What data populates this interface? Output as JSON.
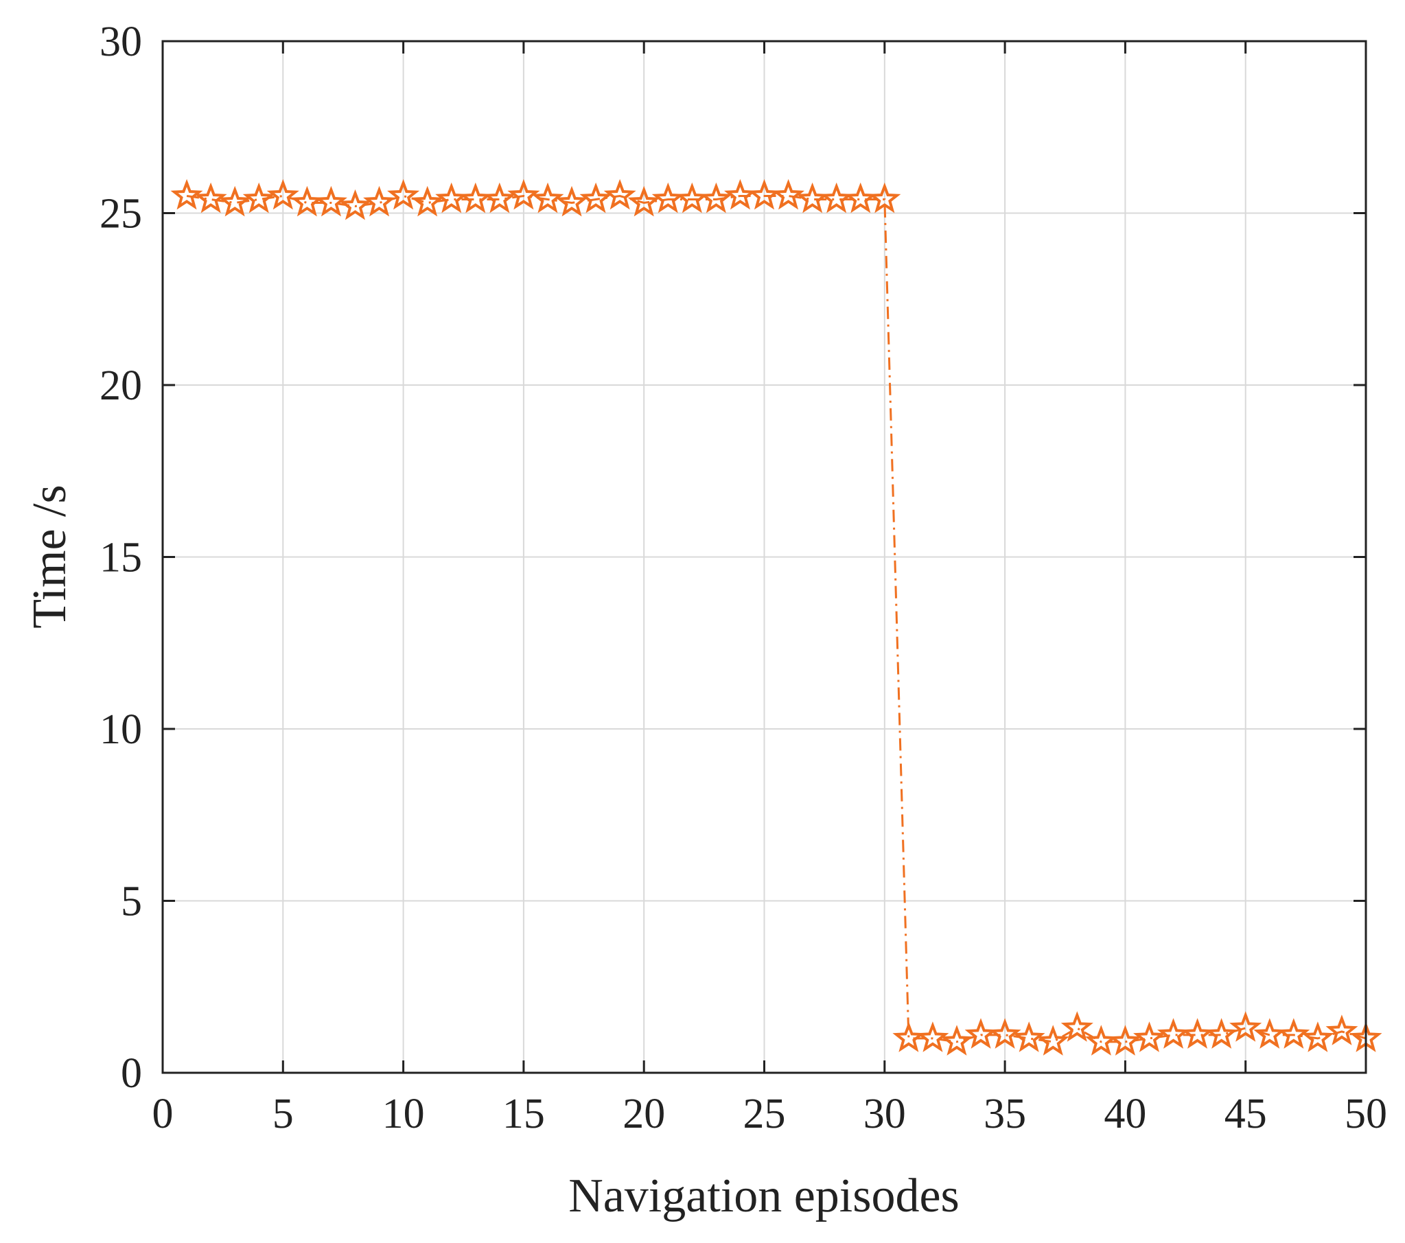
{
  "chart_data": {
    "type": "line",
    "title": "",
    "xlabel": "Navigation episodes",
    "ylabel": "Time /s",
    "xlim": [
      0,
      50
    ],
    "ylim": [
      0,
      30
    ],
    "xticks": [
      "0",
      "5",
      "10",
      "15",
      "20",
      "25",
      "30",
      "35",
      "40",
      "45",
      "50"
    ],
    "yticks": [
      "0",
      "5",
      "10",
      "15",
      "20",
      "25",
      "30"
    ],
    "grid": true,
    "legend": "none",
    "series": [
      {
        "marker": "pentagram",
        "line_style": "dash-dot",
        "color": "#F07020",
        "x": [
          1,
          2,
          3,
          4,
          5,
          6,
          7,
          8,
          9,
          10,
          11,
          12,
          13,
          14,
          15,
          16,
          17,
          18,
          19,
          20,
          21,
          22,
          23,
          24,
          25,
          26,
          27,
          28,
          29,
          30,
          31,
          32,
          33,
          34,
          35,
          36,
          37,
          38,
          39,
          40,
          41,
          42,
          43,
          44,
          45,
          46,
          47,
          48,
          49,
          50
        ],
        "values": [
          25.5,
          25.4,
          25.3,
          25.4,
          25.5,
          25.3,
          25.3,
          25.2,
          25.3,
          25.5,
          25.3,
          25.4,
          25.4,
          25.4,
          25.5,
          25.4,
          25.3,
          25.4,
          25.5,
          25.3,
          25.4,
          25.4,
          25.4,
          25.5,
          25.5,
          25.5,
          25.4,
          25.4,
          25.4,
          25.4,
          1.0,
          1.0,
          0.9,
          1.1,
          1.1,
          1.0,
          0.9,
          1.3,
          0.9,
          0.9,
          1.0,
          1.1,
          1.1,
          1.1,
          1.3,
          1.1,
          1.1,
          1.0,
          1.2,
          1.0
        ]
      }
    ]
  }
}
